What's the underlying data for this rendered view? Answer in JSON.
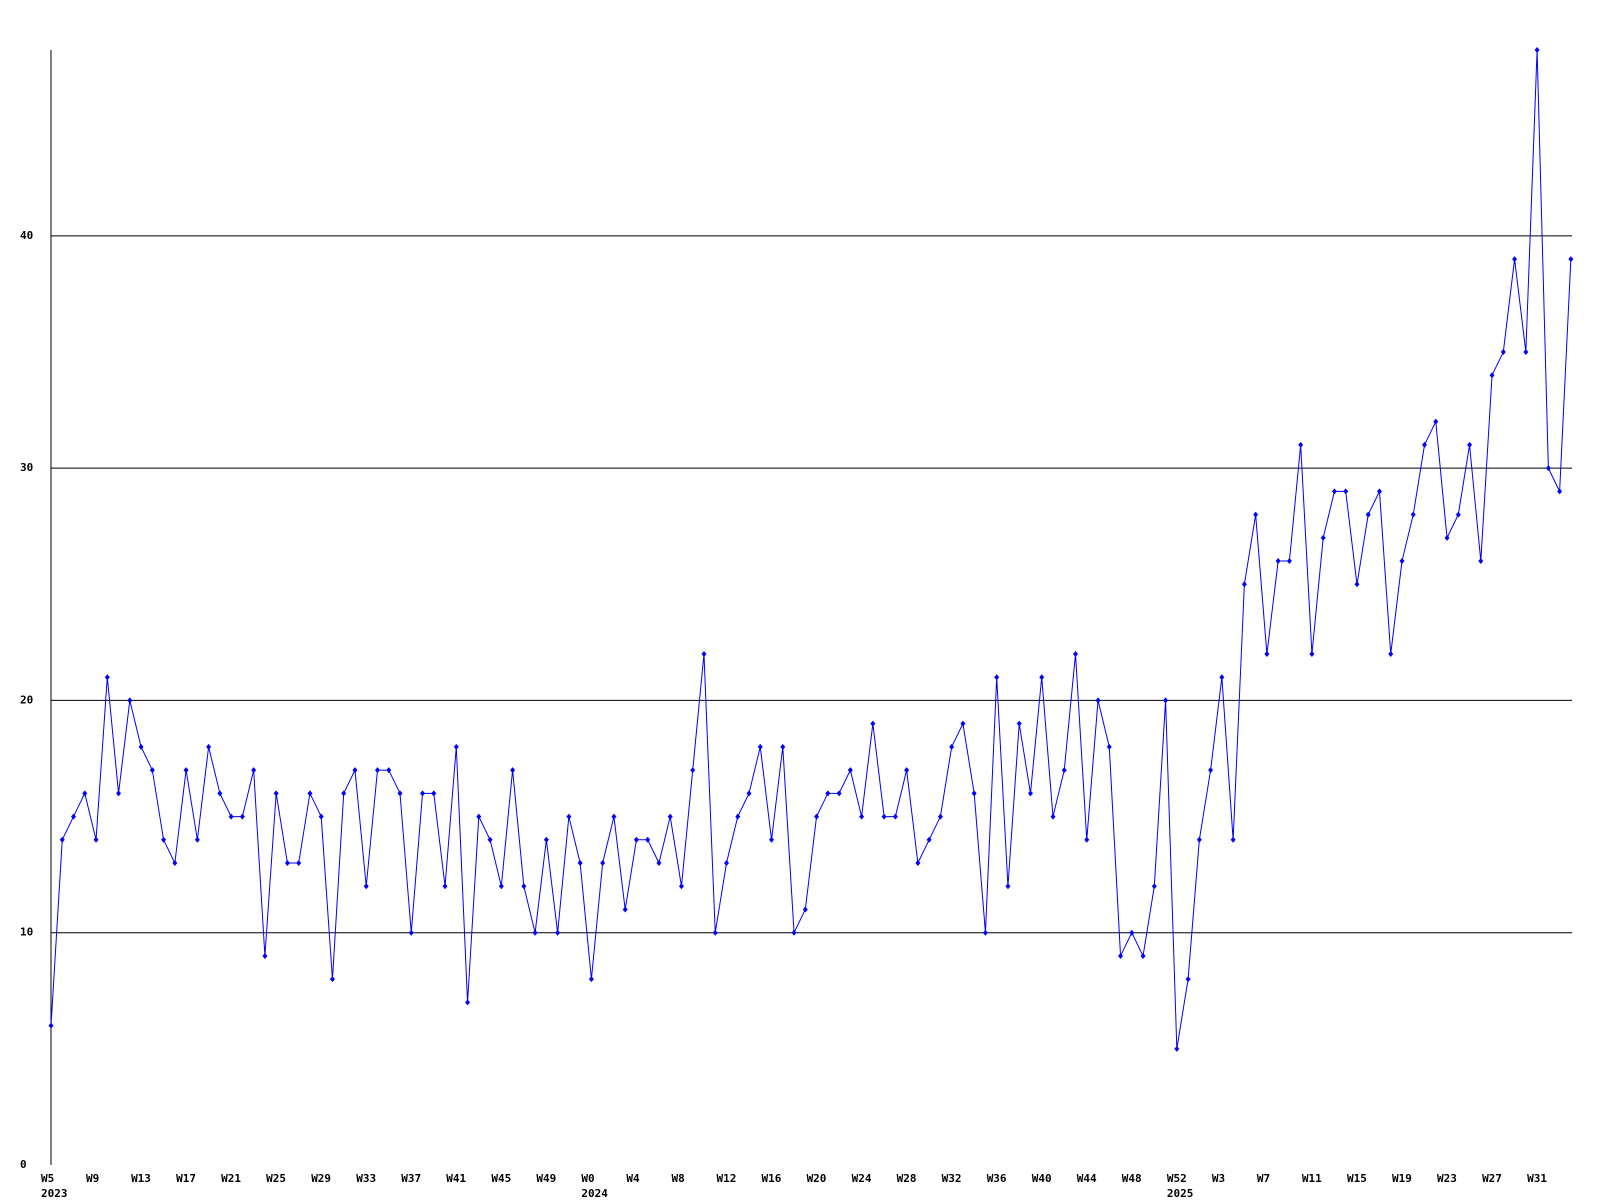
{
  "chart_data": {
    "type": "line",
    "categories": [
      "W5",
      null,
      null,
      null,
      "W9",
      null,
      null,
      null,
      "W13",
      null,
      null,
      null,
      "W17",
      null,
      null,
      null,
      "W21",
      null,
      null,
      null,
      "W25",
      null,
      null,
      null,
      "W29",
      null,
      null,
      null,
      "W33",
      null,
      null,
      null,
      "W37",
      null,
      null,
      null,
      "W41",
      null,
      null,
      null,
      "W45",
      null,
      null,
      null,
      "W49",
      null,
      null,
      null,
      "W0",
      null,
      null,
      null,
      "W4",
      null,
      null,
      null,
      "W8",
      null,
      null,
      null,
      "W12",
      null,
      null,
      null,
      "W16",
      null,
      null,
      null,
      "W20",
      null,
      null,
      null,
      "W24",
      null,
      null,
      null,
      "W28",
      null,
      null,
      null,
      "W32",
      null,
      null,
      null,
      "W36",
      null,
      null,
      null,
      "W40",
      null,
      null,
      null,
      "W44",
      null,
      null,
      null,
      "W48",
      null,
      null,
      null,
      "W52",
      null,
      null,
      null,
      "W3",
      null,
      null,
      null,
      "W7",
      null,
      null,
      null,
      "W11",
      null,
      null,
      null,
      "W15",
      null,
      null,
      null,
      "W19",
      null,
      null,
      null,
      "W23",
      null,
      null,
      null,
      "W27",
      null,
      null,
      null,
      "W31",
      null,
      null,
      null
    ],
    "x_groups": [
      {
        "label": "2023",
        "start": 0
      },
      {
        "label": "2024",
        "start": 48
      },
      {
        "label": "2025",
        "start": 100
      }
    ],
    "series": [
      {
        "color": "#0000ff",
        "values": [
          6,
          14,
          15,
          16,
          14,
          21,
          16,
          20,
          18,
          17,
          14,
          13,
          17,
          14,
          18,
          16,
          15,
          15,
          17,
          9,
          16,
          13,
          13,
          16,
          15,
          8,
          16,
          17,
          12,
          17,
          17,
          16,
          10,
          16,
          16,
          12,
          18,
          7,
          15,
          14,
          12,
          17,
          12,
          10,
          14,
          10,
          15,
          13,
          8,
          13,
          15,
          11,
          14,
          14,
          13,
          15,
          12,
          17,
          22,
          10,
          13,
          15,
          16,
          18,
          14,
          18,
          10,
          11,
          15,
          16,
          16,
          17,
          15,
          19,
          15,
          15,
          17,
          13,
          14,
          15,
          18,
          19,
          16,
          10,
          21,
          12,
          19,
          16,
          21,
          15,
          17,
          22,
          14,
          20,
          18,
          9,
          10,
          9,
          12,
          20,
          5,
          8,
          14,
          17,
          21,
          14,
          25,
          28,
          22,
          26,
          26,
          31,
          22,
          27,
          29,
          29,
          25,
          28,
          29,
          22,
          26,
          28,
          31,
          32,
          27,
          28,
          31,
          26,
          34,
          35,
          39,
          35,
          48,
          30,
          29,
          39
        ]
      }
    ],
    "ylim": [
      0,
      48
    ],
    "yticks": [
      0,
      10,
      20,
      30,
      40
    ],
    "grid": true
  }
}
